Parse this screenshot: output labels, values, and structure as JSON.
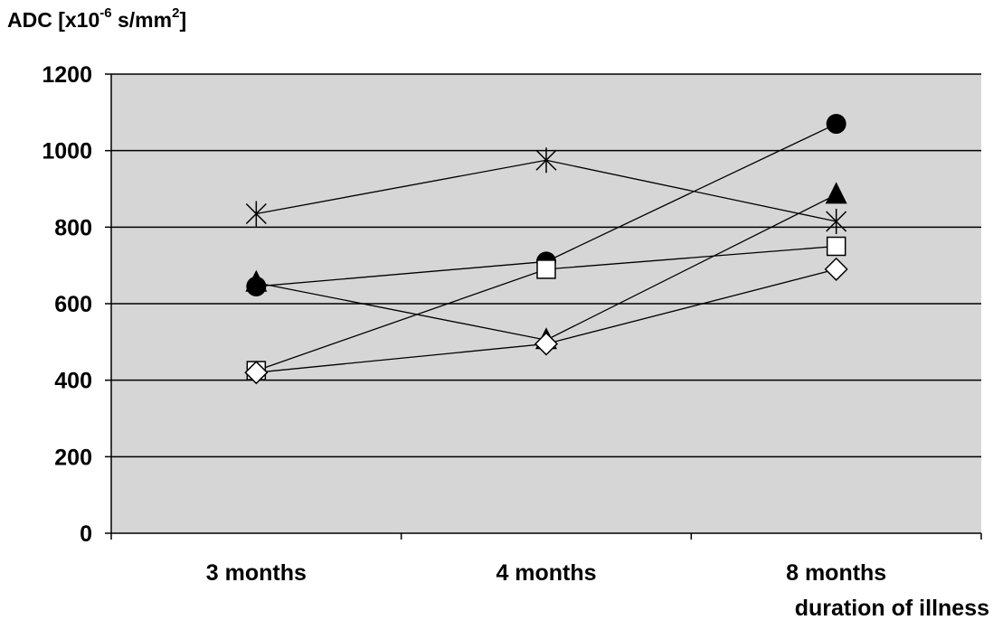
{
  "chart_data": {
    "type": "line",
    "ylabel": {
      "prefix": "ADC [x10",
      "exponent": "-6",
      "unit": " s/mm",
      "unit_exponent": "2",
      "suffix": "]"
    },
    "xlabel": "duration of illness",
    "categories": [
      "3 months",
      "4 months",
      "8 months"
    ],
    "ylim": [
      0,
      1200
    ],
    "yticks": [
      0,
      200,
      400,
      600,
      800,
      1000,
      1200
    ],
    "grid": "horizontal",
    "legend": "none",
    "colors": {
      "plot_bg": "#d6d6d6",
      "line": "#000000",
      "grid": "#000000"
    },
    "series": [
      {
        "marker": "asterisk",
        "values": [
          835,
          975,
          815
        ]
      },
      {
        "marker": "circle",
        "values": [
          645,
          710,
          1070
        ]
      },
      {
        "marker": "triangle",
        "values": [
          655,
          505,
          885
        ]
      },
      {
        "marker": "square",
        "values": [
          425,
          690,
          750
        ]
      },
      {
        "marker": "diamond",
        "values": [
          420,
          495,
          690
        ]
      }
    ]
  }
}
